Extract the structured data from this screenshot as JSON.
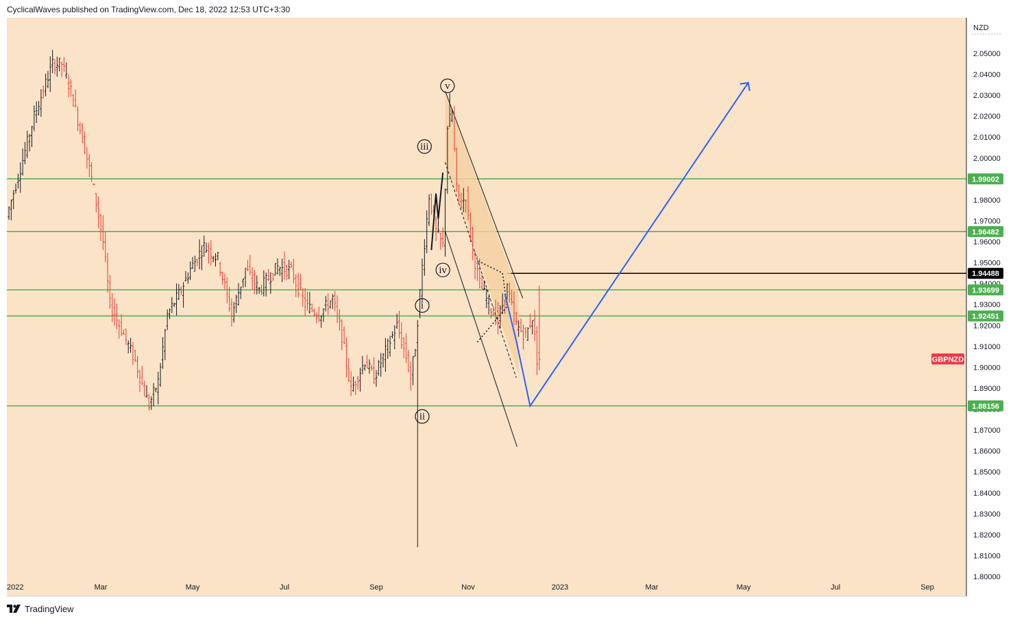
{
  "header": {
    "publish_line": "CyclicalWaves published on TradingView.com, Dec 18, 2022 12:53 UTC+3:30"
  },
  "footer": {
    "brand": "TradingView"
  },
  "chart_data": {
    "type": "candlestick",
    "symbol": "GBPNZD",
    "currency": "NZD",
    "price_range": [
      1.8,
      2.06
    ],
    "y_ticks": [
      1.8,
      1.81,
      1.82,
      1.83,
      1.84,
      1.85,
      1.86,
      1.87,
      1.88,
      1.89,
      1.9,
      1.91,
      1.92,
      1.93,
      1.94,
      1.95,
      1.96,
      1.97,
      1.98,
      2.0,
      2.01,
      2.02,
      2.03,
      2.04,
      2.05
    ],
    "x_ticks": [
      {
        "label": "2022",
        "idx": 0
      },
      {
        "label": "Mar",
        "idx": 40
      },
      {
        "label": "May",
        "idx": 80
      },
      {
        "label": "Jul",
        "idx": 120
      },
      {
        "label": "Sep",
        "idx": 160
      },
      {
        "label": "Nov",
        "idx": 200
      },
      {
        "label": "2023",
        "idx": 240
      },
      {
        "label": "Mar",
        "idx": 280
      },
      {
        "label": "May",
        "idx": 320
      },
      {
        "label": "Jul",
        "idx": 360
      },
      {
        "label": "Sep",
        "idx": 400
      }
    ],
    "anchors": [
      [
        0,
        1.972
      ],
      [
        6,
        1.995
      ],
      [
        12,
        2.02
      ],
      [
        20,
        2.045
      ],
      [
        24,
        2.045
      ],
      [
        28,
        2.032
      ],
      [
        34,
        2.005
      ],
      [
        38,
        1.985
      ],
      [
        42,
        1.96
      ],
      [
        45,
        1.93
      ],
      [
        50,
        1.918
      ],
      [
        56,
        1.903
      ],
      [
        60,
        1.888
      ],
      [
        62,
        1.882
      ],
      [
        66,
        1.893
      ],
      [
        70,
        1.925
      ],
      [
        76,
        1.937
      ],
      [
        80,
        1.947
      ],
      [
        86,
        1.958
      ],
      [
        92,
        1.952
      ],
      [
        98,
        1.925
      ],
      [
        104,
        1.947
      ],
      [
        110,
        1.937
      ],
      [
        118,
        1.948
      ],
      [
        124,
        1.946
      ],
      [
        130,
        1.93
      ],
      [
        136,
        1.925
      ],
      [
        142,
        1.933
      ],
      [
        146,
        1.915
      ],
      [
        150,
        1.889
      ],
      [
        156,
        1.903
      ],
      [
        160,
        1.895
      ],
      [
        166,
        1.91
      ],
      [
        170,
        1.92
      ],
      [
        174,
        1.905
      ],
      [
        176,
        1.895
      ],
      [
        178,
        1.91
      ],
      [
        181,
        1.948
      ],
      [
        184,
        1.982
      ],
      [
        187,
        1.965
      ],
      [
        190,
        1.958
      ],
      [
        192,
        2.015
      ],
      [
        194,
        2.022
      ],
      [
        196,
        1.985
      ],
      [
        198,
        1.978
      ],
      [
        200,
        1.982
      ],
      [
        203,
        1.955
      ],
      [
        206,
        1.94
      ],
      [
        210,
        1.93
      ],
      [
        214,
        1.922
      ],
      [
        218,
        1.938
      ],
      [
        222,
        1.92
      ],
      [
        226,
        1.915
      ],
      [
        229,
        1.924
      ],
      [
        231,
        1.904
      ]
    ],
    "price_lines": [
      {
        "value": 1.99002,
        "label": "1.99002",
        "color": "#4caf50"
      },
      {
        "value": 1.96482,
        "label": "1.96482",
        "color": "#4caf50"
      },
      {
        "value": 1.93699,
        "label": "1.93699",
        "color": "#4caf50"
      },
      {
        "value": 1.92451,
        "label": "1.92451",
        "color": "#4caf50"
      },
      {
        "value": 1.88156,
        "label": "1.88156",
        "color": "#4caf50"
      },
      {
        "value": 1.94488,
        "label": "1.94488",
        "color": "#000000"
      }
    ],
    "current_price": {
      "value": 1.902,
      "label": "GBPNZD",
      "color": "#f23645"
    },
    "wave_labels": [
      {
        "text": "i",
        "idx": 180,
        "price": 1.9295
      },
      {
        "text": "ii",
        "idx": 180,
        "price": 1.8765
      },
      {
        "text": "iii",
        "idx": 181,
        "price": 2.0055
      },
      {
        "text": "iv",
        "idx": 189,
        "price": 1.9465
      },
      {
        "text": "v",
        "idx": 191,
        "price": 2.0345
      }
    ],
    "projection": {
      "points": [
        [
          216,
          1.935
        ],
        [
          221,
          1.9125
        ],
        [
          227,
          1.8815
        ],
        [
          322,
          2.036
        ]
      ],
      "color": "#2962ff"
    },
    "channel": {
      "upper": [
        [
          190,
          2.032
        ],
        [
          222,
          1.935
        ]
      ],
      "lower": [
        [
          190,
          1.965
        ],
        [
          221,
          1.862
        ]
      ],
      "inner_dashed": [
        [
          190,
          1.998
        ],
        [
          221,
          1.895
        ]
      ]
    },
    "colors": {
      "up": "#131722",
      "down": "#e53935",
      "background": "#fbe3c7",
      "channel_fill": "#f6cf9f"
    }
  }
}
